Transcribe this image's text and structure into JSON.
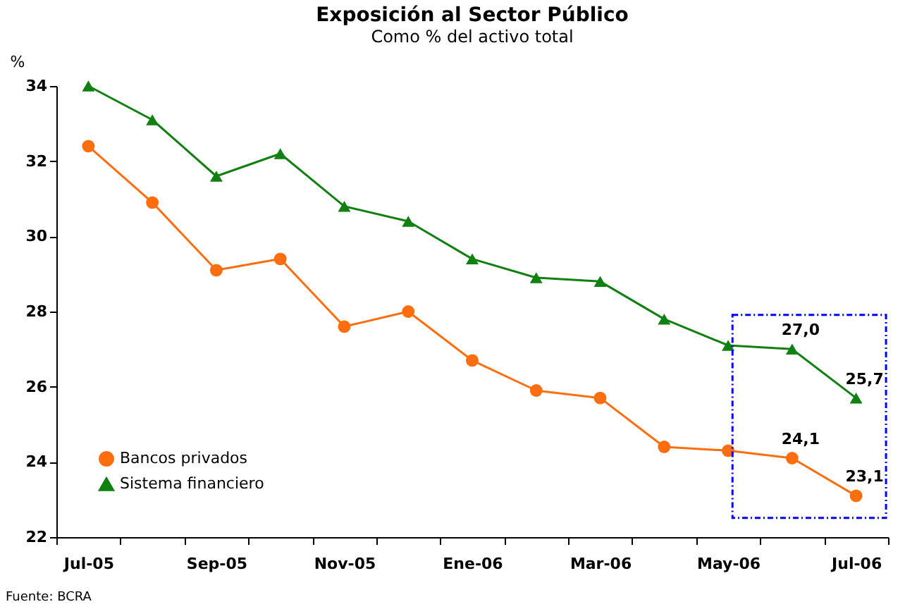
{
  "chart_data": {
    "type": "line",
    "title": "Exposición al Sector Público",
    "subtitle": "Como % del activo total",
    "ylabel": "%",
    "categories": [
      "Jul-05",
      null,
      "Sep-05",
      null,
      "Nov-05",
      null,
      "Ene-06",
      null,
      "Mar-06",
      null,
      "May-06",
      null,
      "Jul-06"
    ],
    "series": [
      {
        "name": "Bancos privados",
        "color": "#ff6e0e",
        "marker": "circle",
        "values": [
          32.4,
          30.9,
          29.1,
          29.4,
          27.6,
          28.0,
          26.7,
          25.9,
          25.7,
          24.4,
          24.3,
          24.1,
          23.1
        ],
        "value_labels": [
          null,
          null,
          null,
          null,
          null,
          null,
          null,
          null,
          null,
          null,
          null,
          "24,1",
          "23,1"
        ]
      },
      {
        "name": "Sistema financiero",
        "color": "#108010",
        "marker": "triangle",
        "values": [
          34.0,
          33.1,
          31.6,
          32.2,
          30.8,
          30.4,
          29.4,
          28.9,
          28.8,
          27.8,
          27.1,
          27.0,
          25.7
        ],
        "value_labels": [
          null,
          null,
          null,
          null,
          null,
          null,
          null,
          null,
          null,
          null,
          null,
          "27,0",
          "25,7"
        ]
      }
    ],
    "ylim": [
      22,
      34
    ],
    "yticks": [
      22,
      24,
      26,
      28,
      30,
      32,
      34
    ],
    "grid": false,
    "legend": "bottom left",
    "line_style": "solid",
    "annotations": [
      "Fuente: BCRA"
    ]
  }
}
